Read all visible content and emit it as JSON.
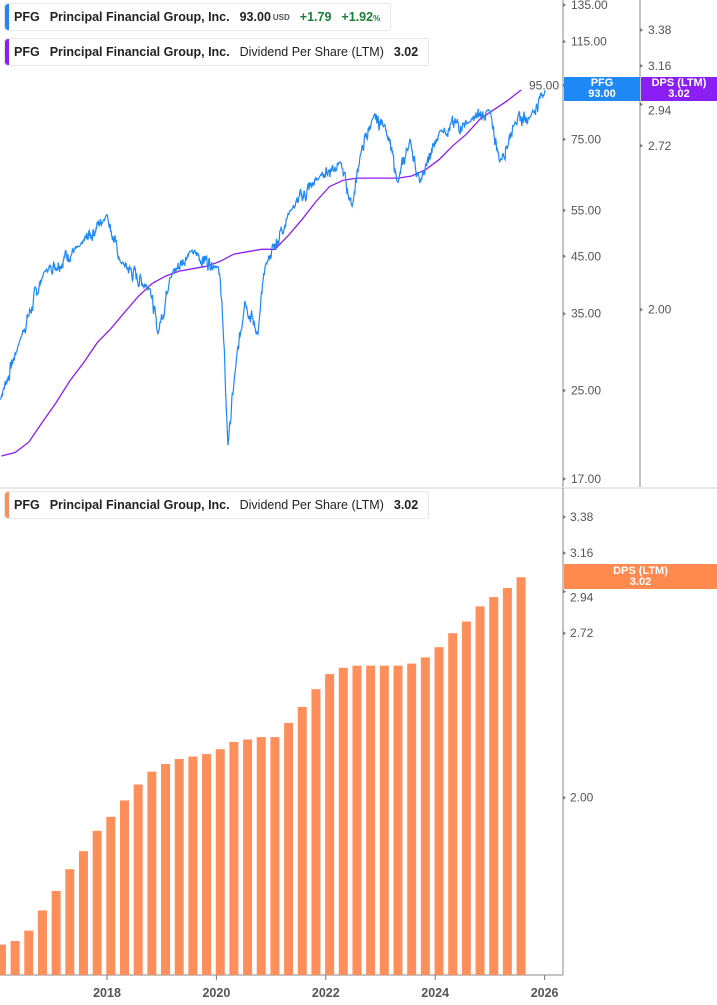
{
  "colors": {
    "price": "#1e88f5",
    "dps_line": "#8b1ef5",
    "dps_bar": "#ff8f5a",
    "axis": "#b0b0b0",
    "tag_price": "#1e88f5",
    "tag_dps": "#8b1ef5",
    "tag_bar": "#ff8a50"
  },
  "legends": {
    "price": {
      "ticker": "PFG",
      "company": "Principal Financial Group, Inc.",
      "price": "93.00",
      "currency": "USD",
      "change": "+1.79",
      "change_pct": "+1.92",
      "pct_sign": "%"
    },
    "dps_top": {
      "ticker": "PFG",
      "company": "Principal Financial Group, Inc.",
      "metric": "Dividend Per Share (LTM)",
      "value": "3.02"
    },
    "dps_bottom": {
      "ticker": "PFG",
      "company": "Principal Financial Group, Inc.",
      "metric": "Dividend Per Share (LTM)",
      "value": "3.02"
    }
  },
  "tags": {
    "price": {
      "label": "PFG",
      "value": "93.00"
    },
    "dps_top": {
      "label": "DPS (LTM)",
      "value": "3.02"
    },
    "dps_bottom": {
      "label": "DPS (LTM)",
      "value": "3.02"
    }
  },
  "chart_data": [
    {
      "type": "line",
      "scale": "log",
      "price_axis_ticks": [
        "135.00",
        "115.00",
        "95.00",
        "75.00",
        "55.00",
        "45.00",
        "35.00",
        "25.00",
        "17.00"
      ],
      "dps_axis_ticks": [
        "3.38",
        "3.16",
        "2.94",
        "2.72",
        "2.00"
      ],
      "series": [
        {
          "name": "PFG",
          "points": [
            [
              "2016.04",
              24
            ],
            [
              "2016.4",
              31
            ],
            [
              "2016.85",
              42
            ],
            [
              "2017.5",
              47
            ],
            [
              "2018.0",
              54
            ],
            [
              "2018.24",
              44
            ],
            [
              "2018.79",
              39
            ],
            [
              "2018.93",
              32
            ],
            [
              "2019.15",
              41
            ],
            [
              "2019.52",
              46
            ],
            [
              "2020.03",
              43
            ],
            [
              "2020.1",
              37
            ],
            [
              "2020.21",
              19.7
            ],
            [
              "2020.34",
              27
            ],
            [
              "2020.52",
              37
            ],
            [
              "2020.76",
              32
            ],
            [
              "2020.89",
              43
            ],
            [
              "2021.35",
              55
            ],
            [
              "2021.9",
              64
            ],
            [
              "2022.26",
              68
            ],
            [
              "2022.48",
              56
            ],
            [
              "2022.63",
              70
            ],
            [
              "2022.85",
              82
            ],
            [
              "2023.08",
              80
            ],
            [
              "2023.32",
              62
            ],
            [
              "2023.54",
              75
            ],
            [
              "2023.72",
              62
            ],
            [
              "2024.09",
              78
            ],
            [
              "2024.63",
              81
            ],
            [
              "2025.0",
              85
            ],
            [
              "2025.18",
              68
            ],
            [
              "2025.46",
              81
            ],
            [
              "2025.74",
              83
            ],
            [
              "2026.01",
              93
            ]
          ]
        },
        {
          "name": "Dividend Per Share (LTM)",
          "axis": "dps"
        }
      ]
    },
    {
      "type": "bar",
      "scale": "log",
      "y_ticks": [
        "3.38",
        "3.16",
        "2.94",
        "2.72",
        "2.00"
      ],
      "x_ticks": [
        "2018",
        "2020",
        "2022",
        "2024",
        "2026"
      ],
      "series": [
        {
          "name": "Dividend Per Share (LTM)",
          "dates": [
            "2016-Q1",
            "2016-Q2",
            "2016-Q3",
            "2016-Q4",
            "2017-Q1",
            "2017-Q2",
            "2017-Q3",
            "2017-Q4",
            "2018-Q1",
            "2018-Q2",
            "2018-Q3",
            "2018-Q4",
            "2019-Q1",
            "2019-Q2",
            "2019-Q3",
            "2019-Q4",
            "2020-Q1",
            "2020-Q2",
            "2020-Q3",
            "2020-Q4",
            "2021-Q1",
            "2021-Q2",
            "2021-Q3",
            "2021-Q4",
            "2022-Q1",
            "2022-Q2",
            "2022-Q3",
            "2022-Q4",
            "2023-Q1",
            "2023-Q2",
            "2023-Q3",
            "2023-Q4",
            "2024-Q1",
            "2024-Q2",
            "2024-Q3",
            "2024-Q4",
            "2025-Q1",
            "2025-Q2",
            "2025-Q3"
          ],
          "values": [
            1.52,
            1.53,
            1.56,
            1.62,
            1.68,
            1.75,
            1.81,
            1.88,
            1.93,
            1.99,
            2.05,
            2.1,
            2.13,
            2.15,
            2.16,
            2.17,
            2.19,
            2.22,
            2.23,
            2.24,
            2.24,
            2.3,
            2.37,
            2.45,
            2.52,
            2.55,
            2.56,
            2.56,
            2.56,
            2.56,
            2.57,
            2.6,
            2.65,
            2.72,
            2.78,
            2.86,
            2.91,
            2.96,
            3.02
          ]
        }
      ]
    }
  ]
}
